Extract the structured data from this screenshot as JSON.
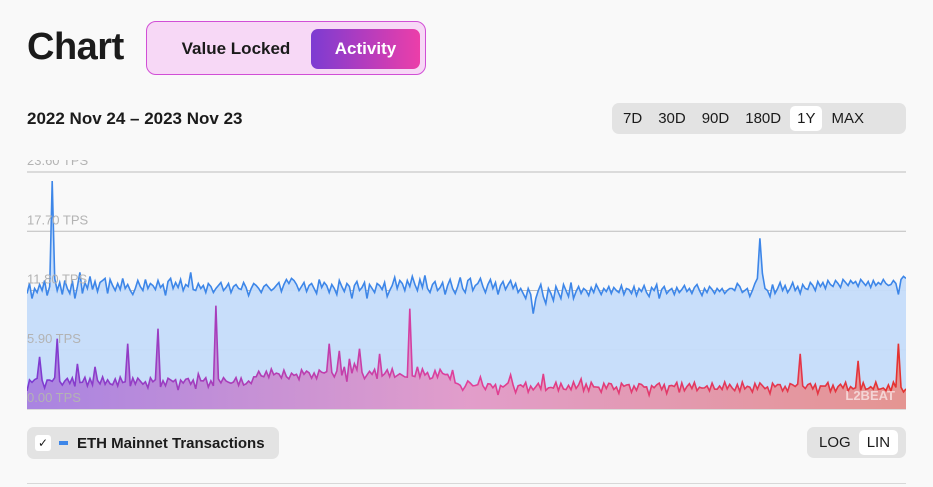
{
  "page": {
    "title": "Chart"
  },
  "switch": {
    "options": [
      "Value Locked",
      "Activity"
    ],
    "active": "Activity"
  },
  "range_label": "2022 Nov 24 – 2023 Nov 23",
  "time_options": [
    "7D",
    "30D",
    "90D",
    "180D",
    "1Y",
    "MAX"
  ],
  "time_active": "1Y",
  "scale_options": [
    "LOG",
    "LIN"
  ],
  "scale_active": "LIN",
  "legend": {
    "label": "ETH Mainnet Transactions",
    "checked": true,
    "color": "#3d86e8"
  },
  "watermark": "L2BEAT",
  "colors": {
    "series_line": "#3d86e8",
    "area_fill": "#c5dcfa",
    "eth_gradient_start": "#7c3bd2",
    "eth_gradient_mid": "#e0409a",
    "eth_gradient_end": "#e5322e"
  },
  "chart_data": {
    "type": "area",
    "title": "",
    "xlabel": "",
    "ylabel": "",
    "x_range": [
      "2022-11-24",
      "2023-11-23"
    ],
    "y_ticks": [
      "0.00 TPS",
      "5.90 TPS",
      "11.80 TPS",
      "17.70 TPS",
      "23.60 TPS"
    ],
    "ylim": [
      0,
      23.6
    ],
    "grid": true,
    "series": [
      {
        "name": "ETH Mainnet Transactions",
        "values": [
          11.5,
          12.5,
          11.0,
          12.0,
          11.6,
          12.4,
          11.8,
          12.8,
          11.3,
          12.2,
          22.7,
          13.0,
          11.8,
          12.6,
          11.4,
          12.8,
          12.0,
          11.5,
          12.8,
          11.0,
          12.2,
          13.6,
          11.5,
          12.6,
          12.0,
          13.2,
          11.9,
          12.7,
          11.7,
          12.6,
          12.8,
          13.0,
          11.5,
          12.9,
          12.3,
          11.8,
          12.5,
          11.9,
          13.0,
          12.0,
          12.4,
          11.8,
          11.4,
          12.0,
          12.8,
          12.2,
          11.8,
          12.9,
          12.0,
          12.5,
          12.3,
          11.9,
          12.8,
          12.1,
          12.4,
          11.3,
          12.7,
          13.0,
          12.0,
          12.6,
          12.1,
          12.9,
          11.8,
          12.4,
          12.2,
          13.6,
          11.9,
          11.8,
          12.5,
          12.0,
          12.3,
          11.6,
          12.5,
          12.2,
          11.6,
          12.0,
          12.3,
          12.6,
          11.8,
          12.1,
          12.5,
          11.6,
          12.2,
          12.4,
          12.0,
          11.9,
          12.6,
          12.1,
          11.3,
          12.0,
          12.5,
          12.3,
          12.0,
          11.6,
          12.2,
          12.4,
          12.1,
          11.8,
          12.0,
          12.3,
          12.6,
          11.7,
          12.4,
          12.9,
          12.5,
          13.0,
          12.8,
          12.4,
          11.8,
          12.2,
          12.6,
          11.7,
          12.3,
          12.5,
          12.0,
          11.5,
          12.9,
          12.1,
          12.6,
          12.3,
          11.6,
          12.4,
          12.0,
          11.4,
          12.8,
          12.2,
          11.7,
          12.5,
          12.2,
          11.0,
          12.3,
          12.7,
          11.8,
          12.1,
          12.6,
          11.0,
          12.4,
          12.0,
          11.6,
          12.5,
          12.3,
          11.9,
          12.6,
          11.2,
          11.8,
          12.3,
          13.1,
          12.0,
          12.8,
          12.5,
          11.8,
          12.8,
          12.2,
          13.2,
          12.4,
          11.8,
          12.9,
          12.1,
          13.3,
          12.0,
          11.6,
          12.4,
          12.7,
          11.8,
          12.1,
          12.6,
          11.4,
          12.3,
          12.9,
          12.0,
          11.5,
          12.2,
          13.1,
          12.0,
          11.6,
          12.8,
          13.0,
          11.8,
          12.3,
          12.5,
          13.0,
          12.2,
          11.6,
          12.4,
          12.9,
          12.0,
          12.6,
          11.4,
          12.3,
          12.7,
          11.9,
          12.4,
          12.8,
          12.0,
          12.5,
          11.6,
          12.0,
          11.5,
          11.0,
          12.0,
          11.4,
          9.5,
          11.0,
          11.8,
          12.4,
          11.2,
          10.5,
          12.0,
          11.5,
          10.8,
          12.2,
          11.6,
          11.0,
          12.4,
          11.8,
          11.2,
          12.6,
          11.0,
          11.7,
          12.2,
          11.5,
          12.0,
          11.8,
          11.3,
          12.1,
          11.6,
          12.4,
          11.9,
          11.4,
          12.0,
          11.7,
          12.2,
          11.5,
          12.1,
          11.8,
          11.6,
          12.3,
          11.4,
          12.0,
          11.9,
          11.5,
          12.2,
          11.3,
          12.0,
          11.7,
          12.3,
          11.6,
          11.2,
          12.1,
          11.8,
          12.4,
          11.0,
          11.9,
          12.2,
          11.5,
          11.8,
          12.0,
          11.4,
          12.1,
          11.6,
          11.9,
          12.3,
          11.7,
          12.0,
          11.5,
          12.1,
          12.4,
          11.8,
          11.3,
          12.0,
          11.6,
          12.2,
          11.9,
          11.5,
          12.0,
          11.7,
          12.0,
          11.5,
          11.8,
          12.0,
          12.0,
          11.8,
          12.5,
          12.2,
          11.6,
          11.8,
          12.0,
          11.2,
          11.8,
          12.5,
          13.0,
          17.0,
          13.5,
          12.0,
          11.8,
          11.2,
          12.4,
          11.5,
          12.0,
          12.6,
          11.8,
          12.3,
          11.6,
          12.0,
          12.6,
          11.8,
          12.2,
          11.5,
          12.4,
          12.0,
          11.9,
          12.6,
          12.3,
          11.8,
          12.7,
          12.2,
          12.6,
          12.0,
          12.8,
          12.4,
          12.2,
          12.8,
          12.5,
          12.1,
          12.9,
          12.6,
          12.3,
          12.8,
          12.5,
          12.7,
          12.2,
          12.9,
          12.6,
          12.3,
          12.7,
          12.1,
          12.8,
          12.3,
          12.6,
          12.4,
          12.9,
          12.5,
          12.3,
          12.4,
          12.8,
          12.5,
          11.4,
          12.9,
          13.2,
          13.0
        ]
      }
    ]
  }
}
